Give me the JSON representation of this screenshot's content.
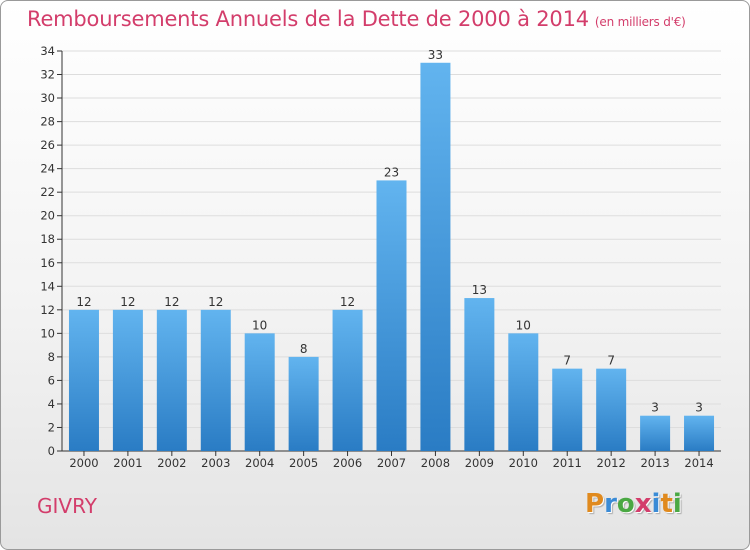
{
  "title": "Remboursements Annuels de la Dette de 2000 à 2014",
  "unit_note": "(en milliers d'€)",
  "city": "GIVRY",
  "logo": {
    "text": "Proxiti",
    "letters": [
      {
        "ch": "P",
        "color": "#e08a1e"
      },
      {
        "ch": "r",
        "color": "#3a8bd6"
      },
      {
        "ch": "o",
        "color": "#4aa843"
      },
      {
        "ch": "x",
        "color": "#d33d6b"
      },
      {
        "ch": "i",
        "color": "#3a8bd6"
      },
      {
        "ch": "t",
        "color": "#e08a1e"
      },
      {
        "ch": "i",
        "color": "#4aa843"
      }
    ]
  },
  "colors": {
    "title": "#d33d6b",
    "bar_top": "#62b4ef",
    "bar_bottom": "#2a7cc4",
    "axis": "#333333",
    "grid": "#dddddd"
  },
  "chart_data": {
    "type": "bar",
    "title": "Remboursements Annuels de la Dette de 2000 à 2014",
    "xlabel": "",
    "ylabel": "",
    "categories": [
      "2000",
      "2001",
      "2002",
      "2003",
      "2004",
      "2005",
      "2006",
      "2007",
      "2008",
      "2009",
      "2010",
      "2011",
      "2012",
      "2013",
      "2014"
    ],
    "values": [
      12,
      12,
      12,
      12,
      10,
      8,
      12,
      23,
      33,
      13,
      10,
      7,
      7,
      3,
      3
    ],
    "ylim": [
      0,
      34
    ],
    "yticks": [
      0,
      2,
      4,
      6,
      8,
      10,
      12,
      14,
      16,
      18,
      20,
      22,
      24,
      26,
      28,
      30,
      32,
      34
    ],
    "grid": true,
    "data_labels": true
  }
}
